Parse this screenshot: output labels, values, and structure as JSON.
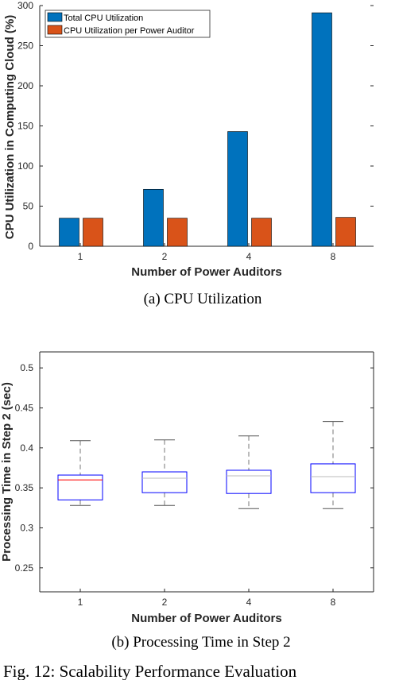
{
  "figure_caption": "Fig. 12: Scalability Performance Evaluation",
  "chart_data": [
    {
      "type": "bar",
      "caption": "(a) CPU Utilization",
      "xlabel": "Number of Power Auditors",
      "ylabel": "CPU Utilization in Computing Cloud (%)",
      "categories": [
        "1",
        "2",
        "4",
        "8"
      ],
      "ylim": [
        0,
        300
      ],
      "yticks": [
        0,
        50,
        100,
        150,
        200,
        250,
        300
      ],
      "legend_position": "top-left",
      "series": [
        {
          "name": "Total CPU Utilization",
          "color": "#0072BD",
          "values": [
            35,
            71,
            143,
            291
          ]
        },
        {
          "name": "CPU Utilization per Power Auditor",
          "color": "#D95319",
          "values": [
            35,
            35,
            35,
            36
          ]
        }
      ]
    },
    {
      "type": "box",
      "caption": "(b) Processing Time in Step 2",
      "xlabel": "Number of Power Auditors",
      "ylabel": "Processing Time in Step 2 (sec)",
      "categories": [
        "1",
        "2",
        "4",
        "8"
      ],
      "ylim": [
        0.22,
        0.52
      ],
      "yticks": [
        0.25,
        0.3,
        0.35,
        0.4,
        0.45,
        0.5
      ],
      "ytick_labels": [
        "0.25",
        "0.3",
        "0.35",
        "0.4",
        "0.45",
        "0.5"
      ],
      "box_color": "#0000FF",
      "median_color": "#FF0000",
      "boxes": [
        {
          "min": 0.328,
          "q1": 0.335,
          "median": 0.36,
          "q3": 0.366,
          "max": 0.409
        },
        {
          "min": 0.328,
          "q1": 0.344,
          "median": 0.362,
          "q3": 0.37,
          "max": 0.41
        },
        {
          "min": 0.324,
          "q1": 0.343,
          "median": 0.365,
          "q3": 0.372,
          "max": 0.415
        },
        {
          "min": 0.324,
          "q1": 0.344,
          "median": 0.364,
          "q3": 0.38,
          "max": 0.433
        }
      ]
    }
  ]
}
